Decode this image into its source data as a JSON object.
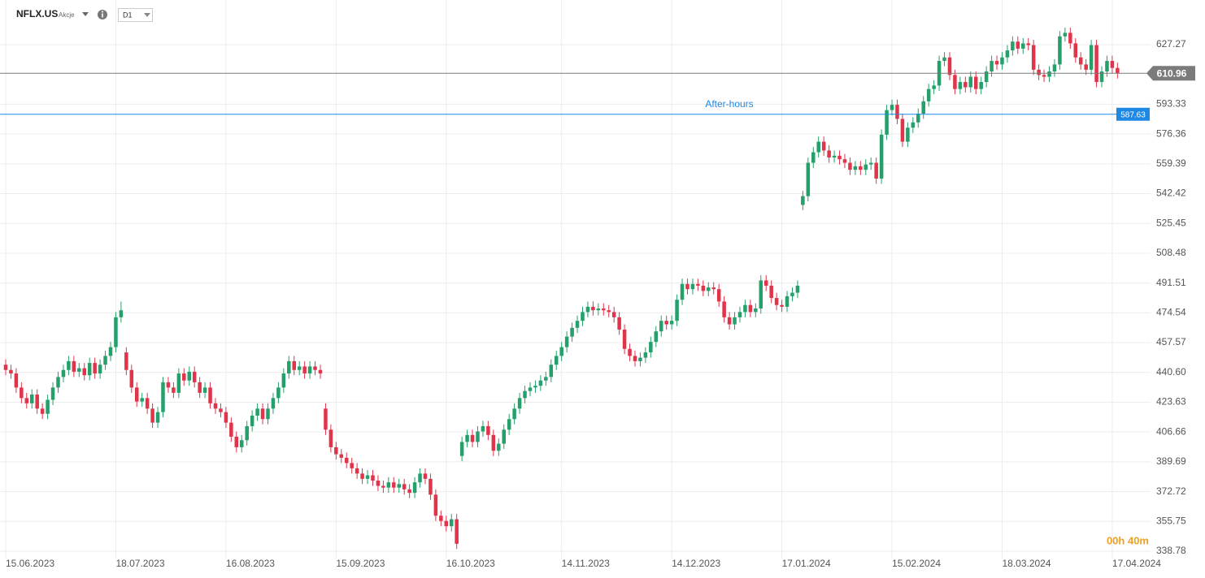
{
  "header": {
    "symbol": "NFLX.US",
    "asset_class": "Akcje",
    "interval": "D1"
  },
  "chart_data": {
    "type": "candlestick",
    "up_color": "#26a06b",
    "down_color": "#e0344b",
    "grid": true,
    "xlim": [
      -1.085,
      218.3
    ],
    "ylim": [
      334.62,
      652.7
    ],
    "xticks": [
      {
        "value": 0,
        "label": "15.06.2023"
      },
      {
        "value": 21,
        "label": "18.07.2023"
      },
      {
        "value": 42,
        "label": "16.08.2023"
      },
      {
        "value": 63,
        "label": "15.09.2023"
      },
      {
        "value": 84,
        "label": "16.10.2023"
      },
      {
        "value": 106,
        "label": "14.11.2023"
      },
      {
        "value": 127,
        "label": "14.12.2023"
      },
      {
        "value": 148,
        "label": "17.01.2024"
      },
      {
        "value": 169,
        "label": "15.02.2024"
      },
      {
        "value": 190,
        "label": "18.03.2024"
      },
      {
        "value": 211,
        "label": "17.04.2024"
      }
    ],
    "yticks": [
      338.78,
      355.75,
      372.72,
      389.69,
      406.66,
      423.63,
      {
        "value": 440.6,
        "label": "440.60"
      },
      457.57,
      474.54,
      491.51,
      508.48,
      525.45,
      542.42,
      559.39,
      576.36,
      593.33,
      627.27
    ],
    "price_lines": [
      {
        "value": 610.96,
        "color": "#7b7b7b"
      },
      {
        "value": 587.63,
        "color": "#1e88e5",
        "label": "After-hours"
      }
    ],
    "timer": "00h 40m",
    "open": [
      445,
      442,
      440,
      432,
      426,
      423,
      428,
      420,
      417,
      425,
      432,
      438,
      442,
      447,
      441,
      443,
      439,
      446,
      440,
      445,
      450,
      455,
      472,
      452,
      442,
      432,
      424,
      426,
      420,
      412,
      418,
      435,
      432,
      429,
      440,
      436,
      441,
      435,
      429,
      432,
      423,
      420,
      418,
      412,
      404,
      398,
      402,
      410,
      416,
      420,
      414,
      420,
      426,
      432,
      440,
      447,
      442,
      444,
      440,
      444,
      442,
      420,
      408,
      398,
      394,
      392,
      389,
      386,
      383,
      380,
      382,
      379,
      376,
      375,
      378,
      375,
      377,
      374,
      372,
      378,
      383,
      380,
      371,
      359,
      356,
      353,
      357,
      393,
      401,
      405,
      401,
      407,
      410,
      405,
      396,
      400,
      408,
      414,
      420,
      426,
      430,
      432,
      433,
      436,
      438,
      445,
      450,
      455,
      461,
      466,
      470,
      475,
      478,
      476,
      477,
      476,
      475,
      472,
      465,
      454,
      450,
      447,
      449,
      452,
      458,
      464,
      470,
      468,
      470,
      482,
      491,
      488,
      491,
      490,
      487,
      489,
      488,
      481,
      472,
      468,
      472,
      475,
      479,
      475,
      477,
      493,
      490,
      483,
      479,
      478,
      484,
      486,
      536,
      541,
      560,
      566,
      572,
      567,
      563,
      564,
      562,
      560,
      556,
      558,
      556,
      559,
      560,
      551,
      576,
      590,
      593,
      585,
      572,
      580,
      583,
      588,
      595,
      602,
      604,
      618,
      620,
      610,
      602,
      606,
      603,
      609,
      602,
      606,
      612,
      618,
      616,
      620,
      624,
      629,
      625,
      628,
      627,
      613,
      610,
      609,
      612,
      616,
      632,
      634,
      628,
      620,
      616,
      613,
      627,
      606,
      612,
      618,
      614
    ],
    "high": [
      448,
      445,
      443,
      435,
      429,
      431,
      431,
      423,
      428,
      435,
      441,
      445,
      450,
      450,
      446,
      446,
      449,
      449,
      448,
      453,
      458,
      475,
      481,
      455,
      445,
      435,
      429,
      429,
      423,
      421,
      438,
      438,
      435,
      443,
      443,
      444,
      444,
      438,
      435,
      435,
      426,
      423,
      421,
      415,
      407,
      405,
      413,
      419,
      423,
      423,
      423,
      429,
      435,
      443,
      450,
      450,
      447,
      447,
      447,
      447,
      445,
      423,
      411,
      401,
      397,
      395,
      392,
      389,
      386,
      385,
      385,
      382,
      379,
      381,
      381,
      380,
      380,
      377,
      381,
      386,
      386,
      383,
      374,
      362,
      359,
      360,
      360,
      404,
      408,
      408,
      410,
      413,
      413,
      408,
      403,
      411,
      417,
      423,
      429,
      433,
      435,
      436,
      439,
      441,
      448,
      453,
      458,
      464,
      469,
      473,
      478,
      481,
      481,
      480,
      480,
      479,
      478,
      475,
      468,
      457,
      453,
      452,
      455,
      461,
      467,
      473,
      473,
      473,
      485,
      494,
      494,
      494,
      494,
      493,
      492,
      492,
      491,
      484,
      475,
      475,
      478,
      482,
      482,
      480,
      496,
      496,
      493,
      486,
      482,
      487,
      489,
      493,
      544,
      563,
      569,
      575,
      575,
      570,
      567,
      567,
      565,
      563,
      561,
      561,
      562,
      563,
      563,
      579,
      593,
      596,
      596,
      588,
      583,
      586,
      591,
      598,
      605,
      607,
      621,
      623,
      623,
      613,
      609,
      609,
      612,
      612,
      609,
      615,
      621,
      621,
      623,
      627,
      632,
      632,
      631,
      631,
      630,
      616,
      613,
      615,
      619,
      635,
      637,
      637,
      631,
      623,
      619,
      630,
      630,
      615,
      621,
      621,
      617
    ],
    "low": [
      439,
      437,
      429,
      423,
      420,
      420,
      417,
      414,
      414,
      422,
      429,
      435,
      439,
      438,
      438,
      436,
      436,
      437,
      437,
      442,
      447,
      452,
      469,
      439,
      429,
      421,
      421,
      417,
      409,
      409,
      415,
      429,
      426,
      426,
      433,
      433,
      432,
      426,
      426,
      420,
      417,
      415,
      409,
      401,
      395,
      395,
      399,
      407,
      413,
      411,
      411,
      417,
      423,
      429,
      437,
      439,
      439,
      437,
      437,
      439,
      437,
      405,
      395,
      391,
      389,
      386,
      383,
      380,
      377,
      377,
      376,
      373,
      372,
      372,
      372,
      372,
      371,
      369,
      369,
      375,
      377,
      368,
      356,
      353,
      350,
      350,
      340,
      390,
      398,
      398,
      398,
      404,
      402,
      393,
      393,
      397,
      405,
      411,
      417,
      423,
      427,
      429,
      430,
      433,
      435,
      442,
      447,
      452,
      458,
      463,
      467,
      472,
      473,
      473,
      473,
      472,
      469,
      462,
      451,
      447,
      444,
      444,
      446,
      449,
      455,
      461,
      465,
      465,
      467,
      479,
      485,
      485,
      487,
      484,
      484,
      485,
      478,
      469,
      465,
      465,
      469,
      472,
      472,
      472,
      474,
      487,
      480,
      476,
      475,
      475,
      481,
      483,
      533,
      538,
      557,
      563,
      564,
      560,
      560,
      559,
      557,
      553,
      553,
      553,
      553,
      556,
      548,
      548,
      573,
      587,
      582,
      569,
      569,
      577,
      580,
      585,
      592,
      599,
      601,
      615,
      607,
      599,
      599,
      600,
      600,
      599,
      599,
      603,
      609,
      613,
      613,
      617,
      621,
      622,
      622,
      624,
      610,
      607,
      606,
      606,
      609,
      613,
      629,
      625,
      617,
      613,
      610,
      610,
      603,
      603,
      609,
      611,
      608
    ],
    "close": [
      442,
      440,
      432,
      426,
      423,
      428,
      420,
      417,
      425,
      432,
      438,
      442,
      447,
      441,
      443,
      439,
      446,
      440,
      445,
      450,
      455,
      472,
      476,
      442,
      432,
      424,
      426,
      420,
      412,
      418,
      435,
      432,
      429,
      440,
      436,
      441,
      435,
      429,
      432,
      423,
      420,
      418,
      412,
      404,
      398,
      402,
      410,
      416,
      420,
      414,
      420,
      426,
      432,
      440,
      447,
      442,
      444,
      440,
      444,
      442,
      440,
      408,
      398,
      394,
      392,
      389,
      386,
      383,
      380,
      382,
      379,
      376,
      375,
      378,
      375,
      377,
      374,
      372,
      378,
      383,
      380,
      371,
      359,
      356,
      353,
      357,
      343,
      401,
      405,
      401,
      407,
      410,
      405,
      396,
      400,
      408,
      414,
      420,
      426,
      430,
      432,
      433,
      436,
      438,
      445,
      450,
      455,
      461,
      466,
      470,
      475,
      478,
      476,
      477,
      476,
      475,
      472,
      465,
      454,
      450,
      447,
      449,
      452,
      458,
      464,
      470,
      468,
      470,
      482,
      491,
      488,
      491,
      490,
      487,
      489,
      488,
      481,
      472,
      468,
      472,
      475,
      479,
      475,
      477,
      493,
      490,
      483,
      479,
      478,
      484,
      486,
      490,
      541,
      560,
      566,
      572,
      567,
      563,
      564,
      562,
      560,
      556,
      558,
      556,
      559,
      560,
      551,
      576,
      590,
      593,
      585,
      572,
      580,
      583,
      588,
      595,
      602,
      604,
      618,
      620,
      610,
      602,
      606,
      603,
      609,
      602,
      606,
      612,
      618,
      616,
      620,
      624,
      629,
      625,
      628,
      627,
      613,
      610,
      609,
      612,
      616,
      632,
      634,
      628,
      620,
      616,
      613,
      627,
      606,
      612,
      618,
      614,
      611
    ]
  }
}
